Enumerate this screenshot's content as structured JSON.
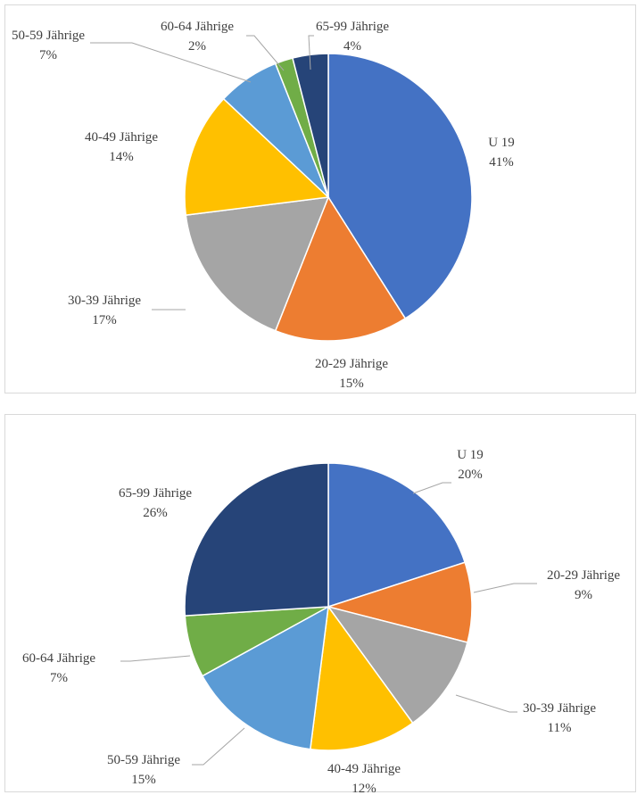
{
  "chart_data": [
    {
      "type": "pie",
      "categories": [
        "U 19",
        "20-29 Jährige",
        "30-39 Jährige",
        "40-49 Jährige",
        "50-59 Jährige",
        "60-64 Jährige",
        "65-99 Jährige"
      ],
      "values": [
        41,
        15,
        17,
        14,
        7,
        2,
        4
      ],
      "value_labels": [
        "41%",
        "15%",
        "17%",
        "14%",
        "7%",
        "2%",
        "4%"
      ],
      "colors": [
        "#4472C4",
        "#ED7D31",
        "#A5A5A5",
        "#FFC000",
        "#5B9BD5",
        "#70AD47",
        "#264478"
      ]
    },
    {
      "type": "pie",
      "categories": [
        "U 19",
        "20-29 Jährige",
        "30-39 Jährige",
        "40-49 Jährige",
        "50-59 Jährige",
        "60-64 Jährige",
        "65-99 Jährige"
      ],
      "values": [
        20,
        9,
        11,
        12,
        15,
        7,
        26
      ],
      "value_labels": [
        "20%",
        "9%",
        "11%",
        "12%",
        "15%",
        "7%",
        "26%"
      ],
      "colors": [
        "#4472C4",
        "#ED7D31",
        "#A5A5A5",
        "#FFC000",
        "#5B9BD5",
        "#70AD47",
        "#264478"
      ]
    }
  ]
}
